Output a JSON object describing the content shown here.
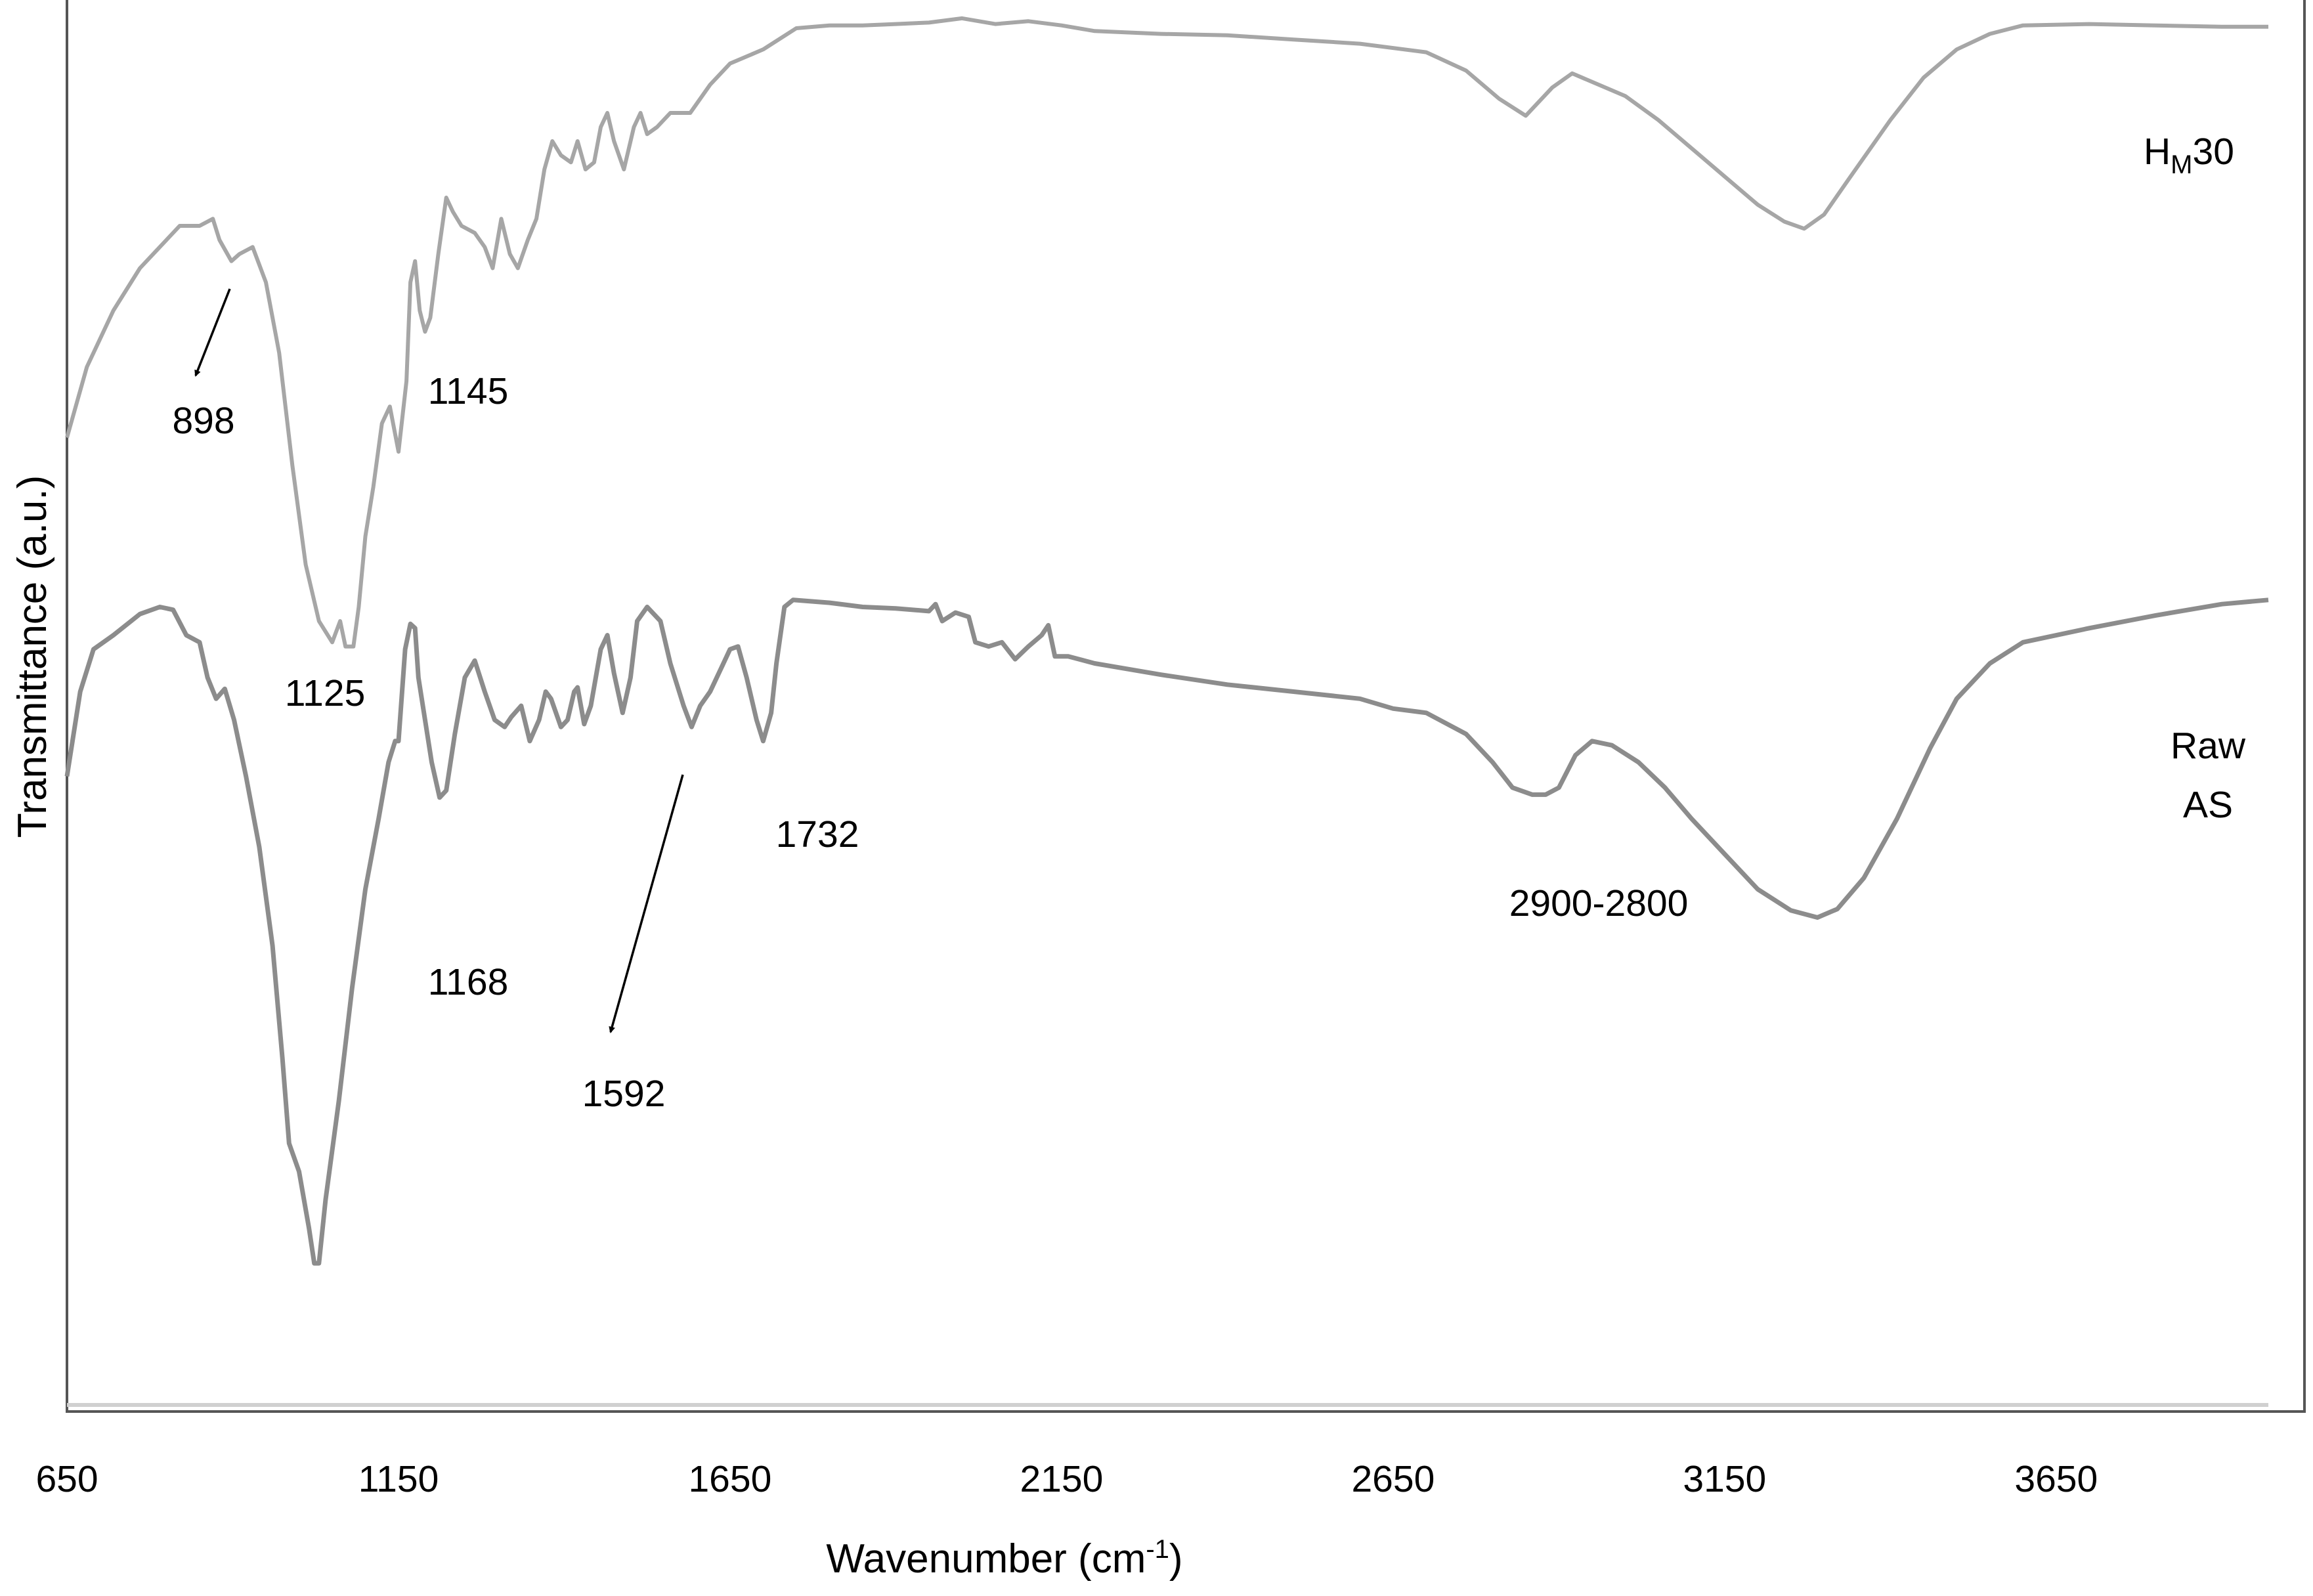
{
  "chart_data": {
    "type": "line",
    "title": "",
    "xlabel": "Wavenumber (cm",
    "xlabel_superscript": "-1",
    "xlabel_suffix": ")",
    "ylabel": "Transmittance (a.u.)",
    "xlim": [
      650,
      3970
    ],
    "ylim": [
      0,
      100
    ],
    "y_ticks_shown": false,
    "grid": false,
    "legend": "none",
    "x_ticks": [
      {
        "value": 650,
        "label": "650"
      },
      {
        "value": 1150,
        "label": "1150"
      },
      {
        "value": 1650,
        "label": "1650"
      },
      {
        "value": 2150,
        "label": "2150"
      },
      {
        "value": 2650,
        "label": "2650"
      },
      {
        "value": 3150,
        "label": "3150"
      },
      {
        "value": 3650,
        "label": "3650"
      }
    ],
    "series": [
      {
        "name": "HM30",
        "label_main": "H",
        "label_sub": "M",
        "label_tail": "30",
        "color": "#a6a6a6",
        "points": [
          [
            650,
            69
          ],
          [
            680,
            74
          ],
          [
            720,
            78
          ],
          [
            760,
            81
          ],
          [
            800,
            83
          ],
          [
            820,
            84
          ],
          [
            850,
            84
          ],
          [
            870,
            84.5
          ],
          [
            880,
            83
          ],
          [
            898,
            81.5
          ],
          [
            910,
            82
          ],
          [
            930,
            82.5
          ],
          [
            950,
            80
          ],
          [
            970,
            75
          ],
          [
            990,
            67
          ],
          [
            1010,
            60
          ],
          [
            1030,
            56
          ],
          [
            1050,
            54.5
          ],
          [
            1062,
            56
          ],
          [
            1070,
            54.2
          ],
          [
            1082,
            54.2
          ],
          [
            1090,
            57
          ],
          [
            1100,
            62
          ],
          [
            1112,
            65.5
          ],
          [
            1125,
            70
          ],
          [
            1137,
            71.2
          ],
          [
            1150,
            68
          ],
          [
            1162,
            73
          ],
          [
            1168,
            80
          ],
          [
            1175,
            81.5
          ],
          [
            1182,
            78
          ],
          [
            1190,
            76.5
          ],
          [
            1198,
            77.5
          ],
          [
            1210,
            82
          ],
          [
            1222,
            86
          ],
          [
            1232,
            85
          ],
          [
            1245,
            84
          ],
          [
            1265,
            83.5
          ],
          [
            1280,
            82.5
          ],
          [
            1292,
            81
          ],
          [
            1305,
            84.5
          ],
          [
            1318,
            82
          ],
          [
            1330,
            81
          ],
          [
            1345,
            83
          ],
          [
            1358,
            84.5
          ],
          [
            1370,
            88
          ],
          [
            1382,
            90
          ],
          [
            1395,
            89
          ],
          [
            1410,
            88.5
          ],
          [
            1420,
            90
          ],
          [
            1432,
            88
          ],
          [
            1445,
            88.5
          ],
          [
            1455,
            91
          ],
          [
            1465,
            92
          ],
          [
            1475,
            90
          ],
          [
            1490,
            88
          ],
          [
            1505,
            91
          ],
          [
            1515,
            92
          ],
          [
            1525,
            90.5
          ],
          [
            1540,
            91
          ],
          [
            1560,
            92
          ],
          [
            1590,
            92
          ],
          [
            1620,
            94
          ],
          [
            1650,
            95.5
          ],
          [
            1700,
            96.5
          ],
          [
            1750,
            98
          ],
          [
            1800,
            98.2
          ],
          [
            1850,
            98.2
          ],
          [
            1900,
            98.3
          ],
          [
            1950,
            98.4
          ],
          [
            2000,
            98.7
          ],
          [
            2050,
            98.3
          ],
          [
            2100,
            98.5
          ],
          [
            2150,
            98.2
          ],
          [
            2200,
            97.8
          ],
          [
            2300,
            97.6
          ],
          [
            2400,
            97.5
          ],
          [
            2500,
            97.2
          ],
          [
            2600,
            96.9
          ],
          [
            2700,
            96.3
          ],
          [
            2760,
            95
          ],
          [
            2810,
            93
          ],
          [
            2850,
            91.8
          ],
          [
            2870,
            92.8
          ],
          [
            2890,
            93.8
          ],
          [
            2920,
            94.8
          ],
          [
            2960,
            94
          ],
          [
            3000,
            93.2
          ],
          [
            3050,
            91.5
          ],
          [
            3100,
            89.5
          ],
          [
            3150,
            87.5
          ],
          [
            3200,
            85.5
          ],
          [
            3240,
            84.3
          ],
          [
            3270,
            83.8
          ],
          [
            3300,
            84.8
          ],
          [
            3340,
            87.5
          ],
          [
            3400,
            91.5
          ],
          [
            3450,
            94.5
          ],
          [
            3500,
            96.5
          ],
          [
            3550,
            97.6
          ],
          [
            3600,
            98.2
          ],
          [
            3700,
            98.3
          ],
          [
            3800,
            98.2
          ],
          [
            3900,
            98.1
          ],
          [
            3970,
            98.1
          ]
        ]
      },
      {
        "name": "Raw AS",
        "label_line1": "Raw",
        "label_line2": "AS",
        "color": "#8c8c8c",
        "points": [
          [
            650,
            45
          ],
          [
            670,
            51
          ],
          [
            690,
            54
          ],
          [
            720,
            55
          ],
          [
            760,
            56.5
          ],
          [
            790,
            57
          ],
          [
            810,
            56.8
          ],
          [
            830,
            55
          ],
          [
            850,
            54.5
          ],
          [
            862,
            52
          ],
          [
            875,
            50.5
          ],
          [
            888,
            51.2
          ],
          [
            902,
            49
          ],
          [
            920,
            45
          ],
          [
            940,
            40
          ],
          [
            960,
            33
          ],
          [
            975,
            25
          ],
          [
            985,
            19
          ],
          [
            1000,
            17
          ],
          [
            1015,
            13
          ],
          [
            1023,
            10.5
          ],
          [
            1030,
            10.5
          ],
          [
            1040,
            15
          ],
          [
            1060,
            22
          ],
          [
            1080,
            30
          ],
          [
            1100,
            37
          ],
          [
            1120,
            42
          ],
          [
            1135,
            46
          ],
          [
            1145,
            47.5
          ],
          [
            1150,
            47.5
          ],
          [
            1160,
            54
          ],
          [
            1168,
            55.8
          ],
          [
            1175,
            55.5
          ],
          [
            1180,
            52
          ],
          [
            1200,
            46
          ],
          [
            1212,
            43.5
          ],
          [
            1222,
            44
          ],
          [
            1235,
            48
          ],
          [
            1250,
            52
          ],
          [
            1265,
            53.2
          ],
          [
            1280,
            51
          ],
          [
            1295,
            49
          ],
          [
            1310,
            48.5
          ],
          [
            1320,
            49.2
          ],
          [
            1335,
            50
          ],
          [
            1348,
            47.5
          ],
          [
            1362,
            49
          ],
          [
            1372,
            51
          ],
          [
            1380,
            50.5
          ],
          [
            1395,
            48.5
          ],
          [
            1405,
            49
          ],
          [
            1415,
            51
          ],
          [
            1420,
            51.3
          ],
          [
            1430,
            48.7
          ],
          [
            1440,
            50
          ],
          [
            1455,
            54
          ],
          [
            1465,
            55
          ],
          [
            1475,
            52.3
          ],
          [
            1488,
            49.5
          ],
          [
            1500,
            52
          ],
          [
            1510,
            56
          ],
          [
            1525,
            57
          ],
          [
            1545,
            56
          ],
          [
            1560,
            53
          ],
          [
            1580,
            50
          ],
          [
            1592,
            48.5
          ],
          [
            1605,
            50
          ],
          [
            1620,
            51
          ],
          [
            1635,
            52.5
          ],
          [
            1650,
            54
          ],
          [
            1662,
            54.2
          ],
          [
            1675,
            52
          ],
          [
            1690,
            49
          ],
          [
            1700,
            47.5
          ],
          [
            1712,
            49.5
          ],
          [
            1720,
            53
          ],
          [
            1732,
            57
          ],
          [
            1745,
            57.5
          ],
          [
            1800,
            57.3
          ],
          [
            1850,
            57
          ],
          [
            1900,
            56.9
          ],
          [
            1950,
            56.7
          ],
          [
            1960,
            57.2
          ],
          [
            1970,
            56
          ],
          [
            1990,
            56.6
          ],
          [
            2010,
            56.3
          ],
          [
            2020,
            54.5
          ],
          [
            2040,
            54.2
          ],
          [
            2060,
            54.5
          ],
          [
            2080,
            53.3
          ],
          [
            2100,
            54.2
          ],
          [
            2120,
            55
          ],
          [
            2130,
            55.7
          ],
          [
            2140,
            53.5
          ],
          [
            2160,
            53.5
          ],
          [
            2200,
            53
          ],
          [
            2300,
            52.2
          ],
          [
            2400,
            51.5
          ],
          [
            2500,
            51
          ],
          [
            2600,
            50.5
          ],
          [
            2650,
            49.8
          ],
          [
            2700,
            49.5
          ],
          [
            2760,
            48
          ],
          [
            2800,
            46
          ],
          [
            2830,
            44.2
          ],
          [
            2860,
            43.7
          ],
          [
            2880,
            43.7
          ],
          [
            2900,
            44.2
          ],
          [
            2925,
            46.5
          ],
          [
            2950,
            47.5
          ],
          [
            2980,
            47.2
          ],
          [
            3020,
            46
          ],
          [
            3060,
            44.2
          ],
          [
            3100,
            42
          ],
          [
            3150,
            39.5
          ],
          [
            3200,
            37
          ],
          [
            3250,
            35.5
          ],
          [
            3290,
            35
          ],
          [
            3320,
            35.6
          ],
          [
            3360,
            37.8
          ],
          [
            3410,
            42
          ],
          [
            3460,
            47
          ],
          [
            3500,
            50.5
          ],
          [
            3550,
            53
          ],
          [
            3600,
            54.5
          ],
          [
            3700,
            55.5
          ],
          [
            3800,
            56.4
          ],
          [
            3900,
            57.2
          ],
          [
            3970,
            57.5
          ]
        ]
      }
    ],
    "annotations": [
      {
        "label": "898",
        "x": 898
      },
      {
        "label": "1145",
        "x": 1145
      },
      {
        "label": "1125",
        "x": 1125
      },
      {
        "label": "1168",
        "x": 1168
      },
      {
        "label": "1592",
        "x": 1592
      },
      {
        "label": "1732",
        "x": 1732
      },
      {
        "label": "2900-2800",
        "x": 2850
      }
    ]
  }
}
